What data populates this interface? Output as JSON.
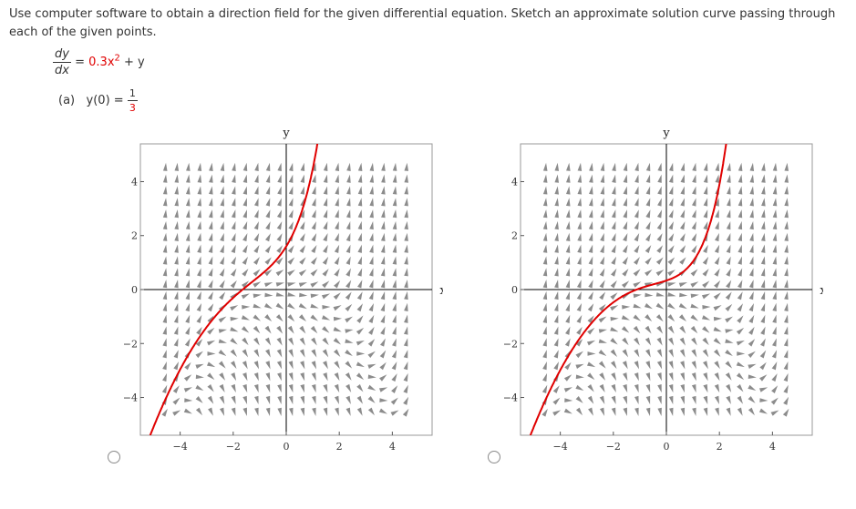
{
  "instructions": "Use computer software to obtain a direction field for the given differential equation. Sketch an approximate solution curve passing through each of the given points.",
  "equation": {
    "lhs_num": "dy",
    "lhs_den": "dx",
    "equals": "=",
    "rhs_red": "0.3x",
    "exp": "2",
    "rhs_rest": "+ y"
  },
  "part": {
    "label": "(a)",
    "cond": "y(0)",
    "equals": "=",
    "num": "1",
    "den": "3"
  },
  "plot": {
    "y_axis_label": "y",
    "x_axis_label": "x",
    "x_ticks": [
      -4,
      -2,
      0,
      2,
      4
    ],
    "y_ticks": [
      4,
      2,
      0,
      -2,
      -4
    ],
    "x_range": [
      -5.5,
      5.5
    ],
    "y_range": [
      -5.4,
      5.4
    ],
    "curve_color": "#e00000",
    "arrow_color": "#8c8c8c"
  },
  "options": [
    {
      "id": "A",
      "curve": "steep solution through y(0) = 1.6",
      "selected": false
    },
    {
      "id": "B",
      "curve": "solution through y(0) = 1/3",
      "selected": false
    }
  ]
}
